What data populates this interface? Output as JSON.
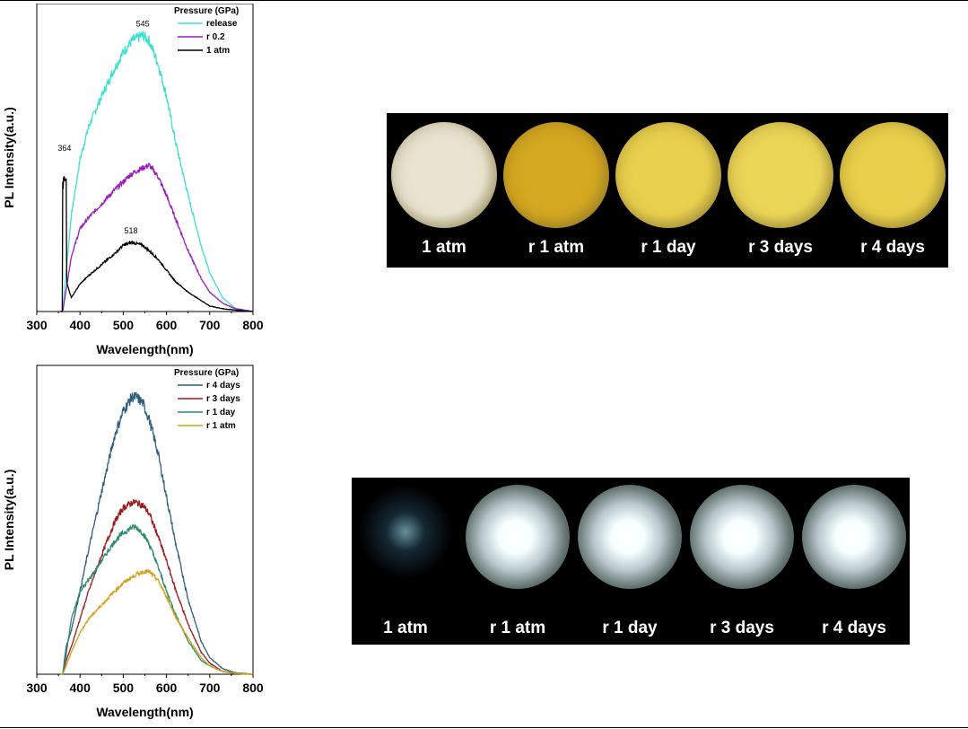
{
  "colors": {
    "release": "#40E0D0",
    "r_0_2": "#9A1DC0",
    "atm": "#000000",
    "r_4_days": "#2F5F80",
    "r_3_days": "#9B1C1C",
    "r_1_day": "#2E8B6E",
    "r_1_atm": "#D4A017",
    "panel_bg": "#000000"
  },
  "chart_data": [
    {
      "type": "line",
      "title": "",
      "xlabel": "Wavelength(nm)",
      "ylabel": "PL Intensity(a.u.)",
      "xlim": [
        300,
        800
      ],
      "ylim": [
        0,
        1.05
      ],
      "xticks": [
        "300",
        "400",
        "500",
        "600",
        "700",
        "800"
      ],
      "grid": false,
      "legend_title": "Pressure (GPa)",
      "legend_position": "top-right",
      "x": [
        360,
        370,
        380,
        400,
        420,
        450,
        480,
        500,
        520,
        545,
        560,
        580,
        600,
        620,
        650,
        680,
        700,
        730,
        760,
        800
      ],
      "series": [
        {
          "name": "release",
          "color_key": "release",
          "values": [
            0,
            0.18,
            0.35,
            0.55,
            0.67,
            0.78,
            0.88,
            0.94,
            0.98,
            1.0,
            0.98,
            0.9,
            0.78,
            0.62,
            0.42,
            0.24,
            0.14,
            0.05,
            0.01,
            0
          ]
        },
        {
          "name": "r 0.2",
          "color_key": "r_0_2",
          "values": [
            0,
            0.1,
            0.2,
            0.3,
            0.34,
            0.39,
            0.44,
            0.47,
            0.5,
            0.52,
            0.53,
            0.49,
            0.42,
            0.34,
            0.22,
            0.12,
            0.07,
            0.03,
            0.01,
            0
          ]
        },
        {
          "name": "1 atm",
          "color_key": "atm",
          "values": [
            0.48,
            0.1,
            0.05,
            0.1,
            0.13,
            0.17,
            0.21,
            0.24,
            0.25,
            0.24,
            0.22,
            0.19,
            0.15,
            0.11,
            0.07,
            0.04,
            0.02,
            0.01,
            0.005,
            0
          ]
        }
      ],
      "annotations": [
        {
          "text": "545",
          "x": 545,
          "y": 1.0
        },
        {
          "text": "364",
          "x": 364,
          "y": 0.55
        },
        {
          "text": "518",
          "x": 518,
          "y": 0.25
        }
      ]
    },
    {
      "type": "line",
      "title": "",
      "xlabel": "Wavelength(nm)",
      "ylabel": "PL Intensity(a.u.)",
      "xlim": [
        300,
        800
      ],
      "ylim": [
        0,
        1.05
      ],
      "xticks": [
        "300",
        "400",
        "500",
        "600",
        "700",
        "800"
      ],
      "grid": false,
      "legend_title": "Pressure (GPa)",
      "legend_position": "top-right",
      "x": [
        360,
        368,
        380,
        400,
        420,
        450,
        480,
        500,
        520,
        530,
        545,
        560,
        580,
        600,
        620,
        650,
        680,
        700,
        730,
        760,
        800
      ],
      "series": [
        {
          "name": "r 4 days",
          "color_key": "r_4_days",
          "values": [
            0,
            0.1,
            0.16,
            0.3,
            0.45,
            0.66,
            0.86,
            0.95,
            1.0,
            1.0,
            0.98,
            0.92,
            0.8,
            0.64,
            0.48,
            0.27,
            0.12,
            0.06,
            0.02,
            0.005,
            0
          ]
        },
        {
          "name": "r 3 days",
          "color_key": "r_3_days",
          "values": [
            0,
            0.05,
            0.1,
            0.2,
            0.3,
            0.43,
            0.55,
            0.6,
            0.62,
            0.62,
            0.61,
            0.58,
            0.5,
            0.41,
            0.31,
            0.18,
            0.08,
            0.04,
            0.01,
            0.003,
            0
          ]
        },
        {
          "name": "r 1 day",
          "color_key": "r_1_day",
          "values": [
            0,
            0.07,
            0.2,
            0.3,
            0.34,
            0.41,
            0.48,
            0.51,
            0.53,
            0.53,
            0.51,
            0.47,
            0.39,
            0.3,
            0.22,
            0.12,
            0.05,
            0.03,
            0.01,
            0.003,
            0
          ]
        },
        {
          "name": "r 1 atm",
          "color_key": "r_1_atm",
          "values": [
            0,
            0.03,
            0.08,
            0.15,
            0.2,
            0.25,
            0.3,
            0.33,
            0.35,
            0.36,
            0.37,
            0.37,
            0.34,
            0.28,
            0.21,
            0.13,
            0.06,
            0.03,
            0.01,
            0.003,
            0
          ]
        }
      ],
      "annotations": []
    }
  ],
  "photo_panels": [
    {
      "labels": [
        "1 atm",
        "r 1 atm",
        "r 1 day",
        "r 3 days",
        "r 4 days"
      ],
      "tints": [
        "#E8E4D0",
        "#D4A820",
        "#E9D04E",
        "#ECD657",
        "#E9CF4A"
      ]
    },
    {
      "labels": [
        "1 atm",
        "r 1 atm",
        "r 1 day",
        "r 3 days",
        "r 4 days"
      ],
      "tints": [
        "#5A8FA0",
        "#FFFFFF",
        "#FFFFFF",
        "#F4FFFF",
        "#FFFFFF"
      ]
    }
  ]
}
